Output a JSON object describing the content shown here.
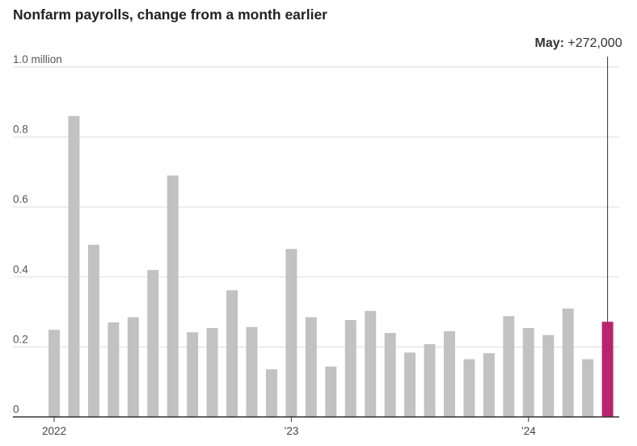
{
  "title": "Nonfarm payrolls, change from a month earlier",
  "colors": {
    "bar": "#c2c2c2",
    "highlight": "#b8246e",
    "grid": "#dddddd",
    "axis": "#333333"
  },
  "chart_data": {
    "type": "bar",
    "title": "Nonfarm payrolls, change from a month earlier",
    "y_unit_label": "1.0 million",
    "ylim": [
      0,
      1.0
    ],
    "yticks": [
      0,
      0.2,
      0.4,
      0.6,
      0.8,
      1.0
    ],
    "ytick_labels": [
      "0",
      "0.2",
      "0.4",
      "0.6",
      "0.8",
      "1.0 million"
    ],
    "grid": true,
    "x_tick_labels": [
      {
        "label": "2022",
        "category": "2022-01"
      },
      {
        "label": "’23",
        "category": "2023-01"
      },
      {
        "label": "’24",
        "category": "2024-01"
      }
    ],
    "categories": [
      "2022-01",
      "2022-02",
      "2022-03",
      "2022-04",
      "2022-05",
      "2022-06",
      "2022-07",
      "2022-08",
      "2022-09",
      "2022-10",
      "2022-11",
      "2022-12",
      "2023-01",
      "2023-02",
      "2023-03",
      "2023-04",
      "2023-05",
      "2023-06",
      "2023-07",
      "2023-08",
      "2023-09",
      "2023-10",
      "2023-11",
      "2023-12",
      "2024-01",
      "2024-02",
      "2024-03",
      "2024-04",
      "2024-05"
    ],
    "values": [
      0.249,
      0.86,
      0.492,
      0.27,
      0.285,
      0.42,
      0.69,
      0.242,
      0.254,
      0.362,
      0.257,
      0.136,
      0.48,
      0.285,
      0.144,
      0.277,
      0.303,
      0.24,
      0.184,
      0.208,
      0.245,
      0.165,
      0.182,
      0.288,
      0.254,
      0.234,
      0.31,
      0.165,
      0.272
    ],
    "highlight_category": "2024-05",
    "annotation": {
      "label": "May:",
      "value": "+272,000",
      "category": "2024-05"
    }
  }
}
